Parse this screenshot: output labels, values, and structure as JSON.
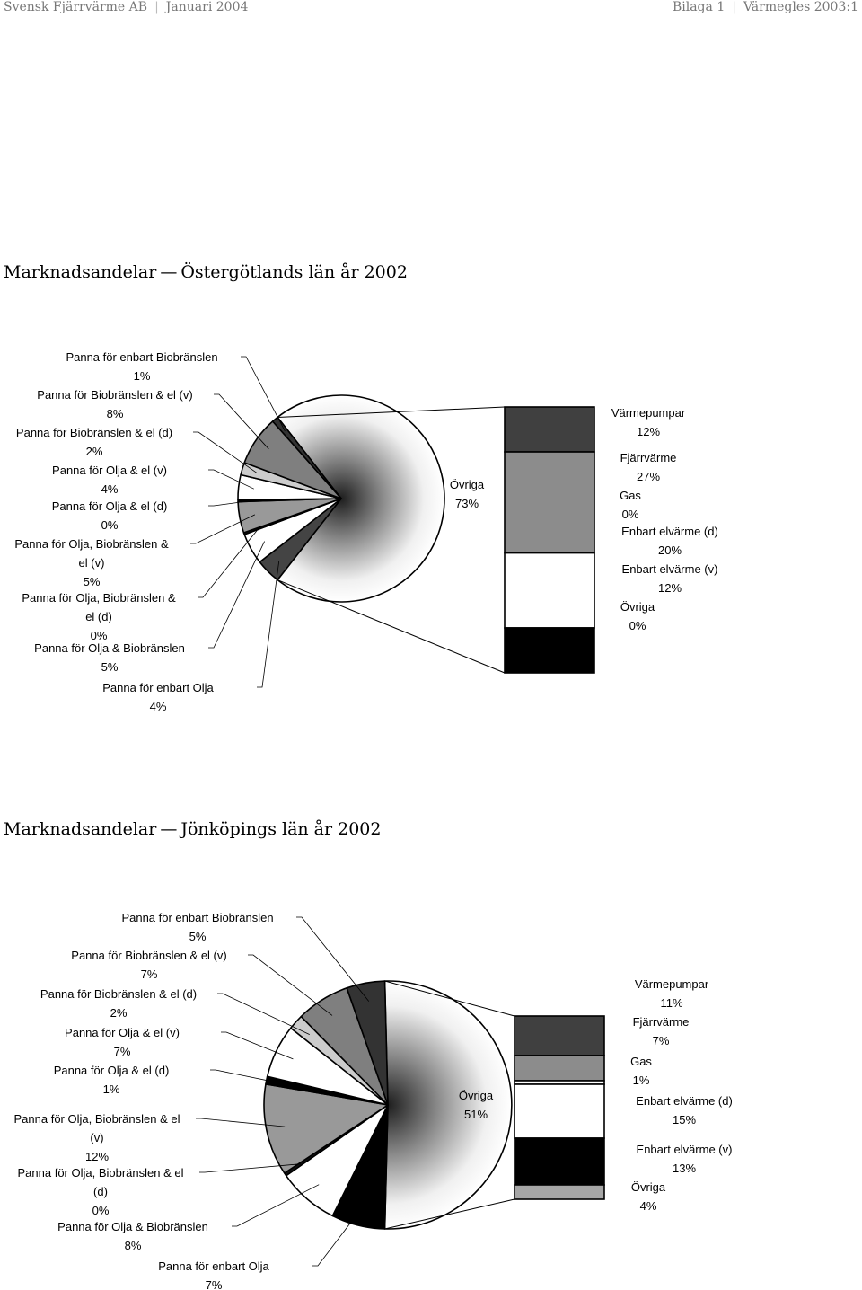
{
  "header": {
    "company": "Svensk Fjärrvärme AB",
    "date": "Januari 2004",
    "appendix": "Bilaga 1",
    "doc": "Värmegles 2003:1"
  },
  "charts": [
    {
      "title_prefix": "Marknadsandelar",
      "title_region": "Östergötlands län år 2002"
    },
    {
      "title_prefix": "Marknadsandelar",
      "title_region": "Jönköpings län år 2002"
    }
  ],
  "chart_data": [
    {
      "type": "bar-of-pie",
      "title": "Marknadsandelar — Östergötlands län år 2002",
      "pie": {
        "slices": [
          {
            "label": "Panna för enbart Biobränslen",
            "value": 1,
            "display": "1%",
            "color": "#333333"
          },
          {
            "label": "Panna för Biobränslen & el (v)",
            "value": 8,
            "display": "8%",
            "color": "#7f7f7f"
          },
          {
            "label": "Panna för Biobränslen & el (d)",
            "value": 2,
            "display": "2%",
            "color": "#cccccc"
          },
          {
            "label": "Panna för Olja & el (v)",
            "value": 4,
            "display": "4%",
            "color": "#ffffff"
          },
          {
            "label": "Panna för Olja & el (d)",
            "value": 0.3,
            "display": "0%",
            "color": "#000000"
          },
          {
            "label": "Panna för Olja, Biobränslen & el (v)",
            "value": 5,
            "display": "5%",
            "color": "#999999"
          },
          {
            "label": "Panna för Olja, Biobränslen & el (d)",
            "value": 0.3,
            "display": "0%",
            "color": "#111111"
          },
          {
            "label": "Panna för Olja & Biobränslen",
            "value": 5,
            "display": "5%",
            "color": "#ffffff"
          },
          {
            "label": "Panna för enbart Olja",
            "value": 4,
            "display": "4%",
            "color": "#444444"
          },
          {
            "label": "Övriga",
            "value": 73,
            "display": "73%",
            "color": "gradient"
          }
        ]
      },
      "bar": {
        "segments": [
          {
            "label": "Värmepumpar",
            "value": 12,
            "display": "12%",
            "color": "#404040"
          },
          {
            "label": "Fjärrvärme",
            "value": 27,
            "display": "27%",
            "color": "#8c8c8c"
          },
          {
            "label": "Gas",
            "value": 0,
            "display": "0%",
            "color": "#ffffff"
          },
          {
            "label": "Enbart elvärme (d)",
            "value": 20,
            "display": "20%",
            "color": "#ffffff"
          },
          {
            "label": "Enbart elvärme (v)",
            "value": 12,
            "display": "12%",
            "color": "#000000"
          },
          {
            "label": "Övriga",
            "value": 0,
            "display": "0%",
            "color": "#a6a6a6"
          }
        ]
      }
    },
    {
      "type": "bar-of-pie",
      "title": "Marknadsandelar — Jönköpings län år 2002",
      "pie": {
        "slices": [
          {
            "label": "Panna för enbart Biobränslen",
            "value": 5,
            "display": "5%",
            "color": "#333333"
          },
          {
            "label": "Panna för Biobränslen & el (v)",
            "value": 7,
            "display": "7%",
            "color": "#7f7f7f"
          },
          {
            "label": "Panna för Biobränslen & el (d)",
            "value": 2,
            "display": "2%",
            "color": "#cccccc"
          },
          {
            "label": "Panna för Olja & el (v)",
            "value": 7,
            "display": "7%",
            "color": "#ffffff"
          },
          {
            "label": "Panna för Olja & el (d)",
            "value": 1,
            "display": "1%",
            "color": "#000000"
          },
          {
            "label": "Panna för Olja, Biobränslen & el (v)",
            "value": 12,
            "display": "12%",
            "color": "#999999"
          },
          {
            "label": "Panna för Olja, Biobränslen & el (d)",
            "value": 0.4,
            "display": "0%",
            "color": "#111111"
          },
          {
            "label": "Panna för Olja & Biobränslen",
            "value": 8,
            "display": "8%",
            "color": "#ffffff"
          },
          {
            "label": "Panna för enbart Olja",
            "value": 7,
            "display": "7%",
            "color": "#000000"
          },
          {
            "label": "Övriga",
            "value": 51,
            "display": "51%",
            "color": "gradient"
          }
        ]
      },
      "bar": {
        "segments": [
          {
            "label": "Värmepumpar",
            "value": 11,
            "display": "11%",
            "color": "#404040"
          },
          {
            "label": "Fjärrvärme",
            "value": 7,
            "display": "7%",
            "color": "#8c8c8c"
          },
          {
            "label": "Gas",
            "value": 1,
            "display": "1%",
            "color": "#ffffff"
          },
          {
            "label": "Enbart elvärme (d)",
            "value": 15,
            "display": "15%",
            "color": "#ffffff"
          },
          {
            "label": "Enbart elvärme (v)",
            "value": 13,
            "display": "13%",
            "color": "#000000"
          },
          {
            "label": "Övriga",
            "value": 4,
            "display": "4%",
            "color": "#a6a6a6"
          }
        ]
      }
    }
  ]
}
